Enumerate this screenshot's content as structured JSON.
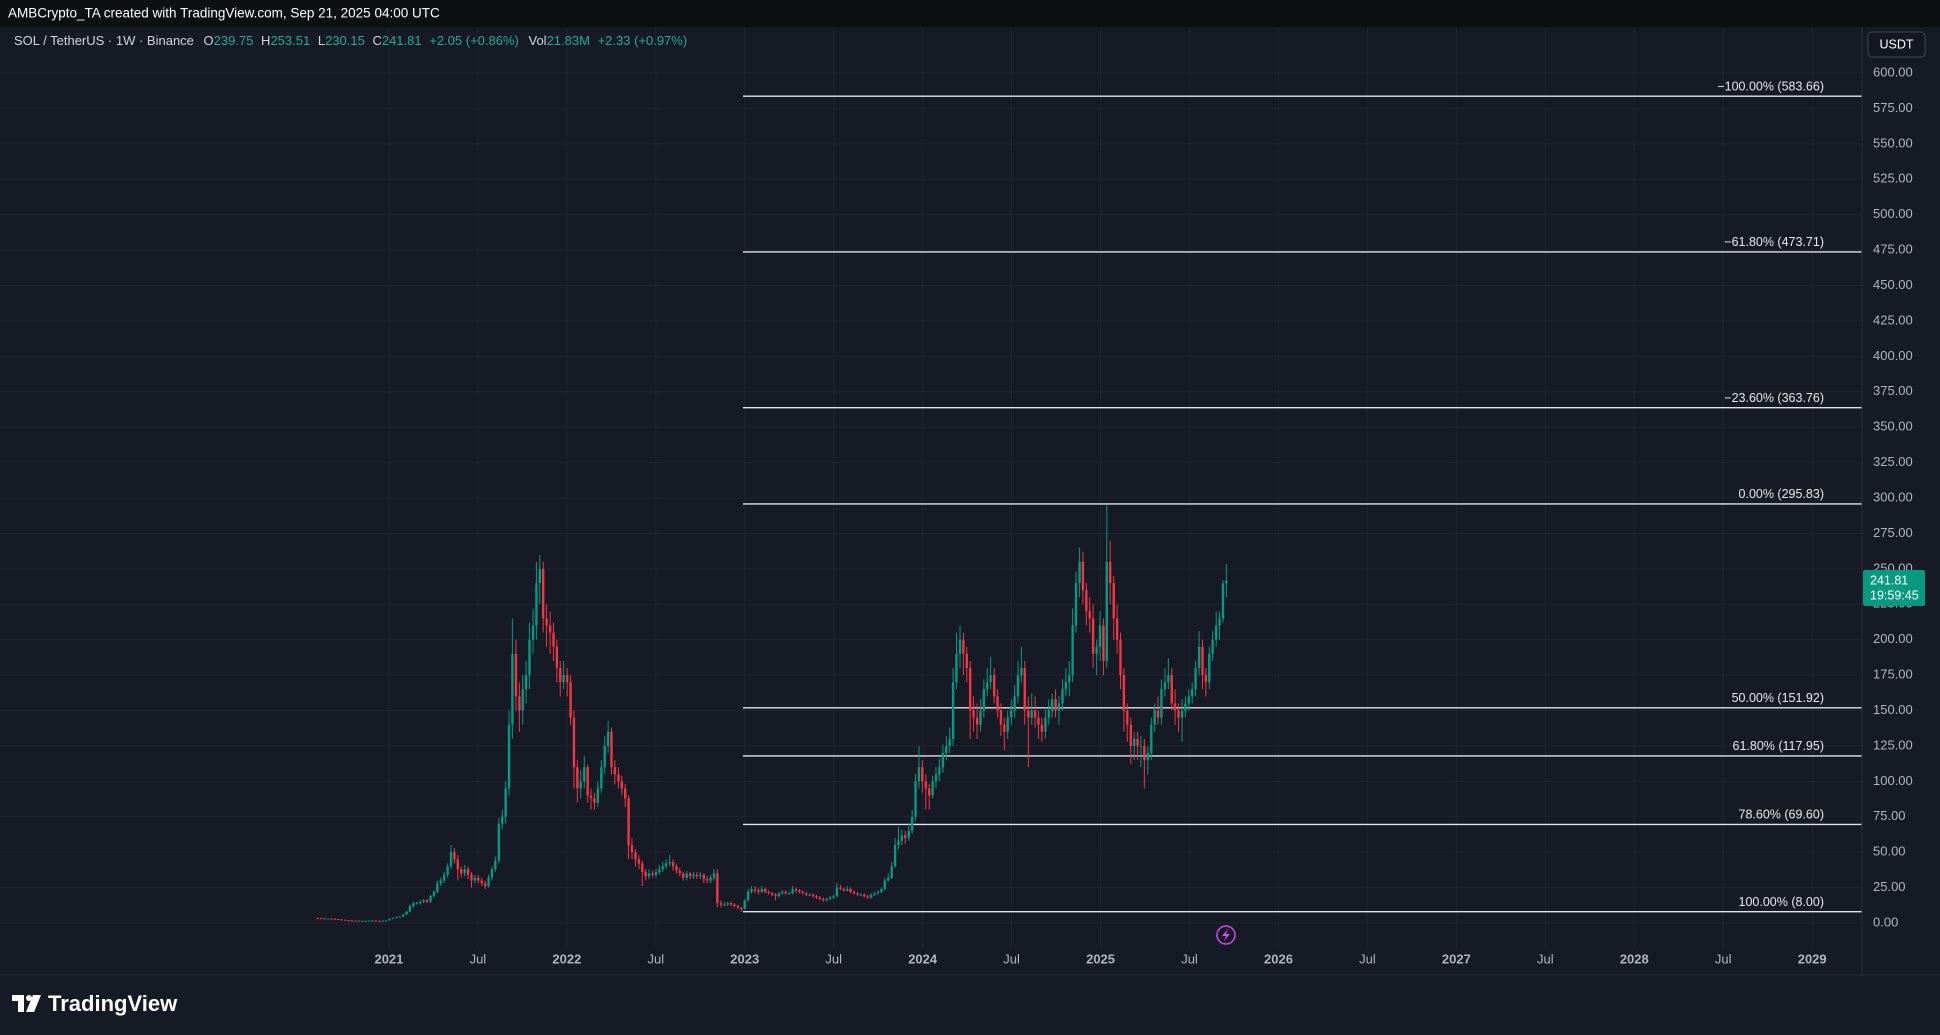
{
  "top_bar": "AMBCrypto_TA created with TradingView.com, Sep 21, 2025 04:00 UTC",
  "currency": "USDT",
  "countdown": "19:59:45",
  "brand": "TradingView",
  "chart_data": {
    "type": "candlestick",
    "title": "SOL / TetherUS · 1W · Binance",
    "header": {
      "o": "O",
      "h": "H",
      "l": "L",
      "c": "C",
      "change": "+2.05 (+0.86%)",
      "vol": "Vol",
      "volume": "21.83M",
      "volume_change": "+2.33 (+0.97%)"
    },
    "colors": {
      "up": "#089981",
      "down": "#f23645"
    },
    "grid": true,
    "xlim": [
      2018.87,
      2029.28
    ],
    "ylim": [
      -36.7,
      632.5
    ],
    "xticks": [
      2021,
      {
        "value": 2021.5,
        "label": "Jul"
      },
      2022,
      {
        "value": 2022.5,
        "label": "Jul"
      },
      2023,
      {
        "value": 2023.5,
        "label": "Jul"
      },
      2024,
      {
        "value": 2024.5,
        "label": "Jul"
      },
      2025,
      {
        "value": 2025.5,
        "label": "Jul"
      },
      2026,
      {
        "value": 2026.5,
        "label": "Jul"
      },
      2027,
      {
        "value": 2027.5,
        "label": "Jul"
      },
      2028,
      {
        "value": 2028.5,
        "label": "Jul"
      },
      2029
    ],
    "yticks": [
      {
        "value": 0,
        "label": "0.00"
      },
      {
        "value": 25,
        "label": "25.00"
      },
      {
        "value": 50,
        "label": "50.00"
      },
      {
        "value": 75,
        "label": "75.00"
      },
      {
        "value": 100,
        "label": "100.00"
      },
      {
        "value": 125,
        "label": "125.00"
      },
      {
        "value": 150,
        "label": "150.00"
      },
      {
        "value": 175,
        "label": "175.00"
      },
      {
        "value": 200,
        "label": "200.00"
      },
      {
        "value": 225,
        "label": "225.00"
      },
      {
        "value": 250,
        "label": "250.00"
      },
      {
        "value": 275,
        "label": "275.00"
      },
      {
        "value": 300,
        "label": "300.00"
      },
      {
        "value": 325,
        "label": "325.00"
      },
      {
        "value": 350,
        "label": "350.00"
      },
      {
        "value": 375,
        "label": "375.00"
      },
      {
        "value": 400,
        "label": "400.00"
      },
      {
        "value": 425,
        "label": "425.00"
      },
      {
        "value": 450,
        "label": "450.00"
      },
      {
        "value": 475,
        "label": "475.00"
      },
      {
        "value": 500,
        "label": "500.00"
      },
      {
        "value": 525,
        "label": "525.00"
      },
      {
        "value": 550,
        "label": "550.00"
      },
      {
        "value": 575,
        "label": "575.00"
      },
      {
        "value": 600,
        "label": "600.00"
      }
    ],
    "fib": {
      "anchor_x": 2022.99,
      "levels": [
        {
          "value": 583.66,
          "label": "−100.00% (583.66)"
        },
        {
          "value": 473.71,
          "label": "−61.80% (473.71)"
        },
        {
          "value": 363.76,
          "label": "−23.60% (363.76)"
        },
        {
          "value": 295.83,
          "label": "0.00% (295.83)"
        },
        {
          "value": 151.92,
          "label": "50.00% (151.92)"
        },
        {
          "value": 117.95,
          "label": "61.80% (117.95)"
        },
        {
          "value": 69.6,
          "label": "78.60% (69.60)"
        },
        {
          "value": 8,
          "label": "100.00% (8.00)"
        }
      ]
    },
    "x": [
      2020.6,
      2020.619,
      2020.638,
      2020.658,
      2020.677,
      2020.696,
      2020.715,
      2020.734,
      2020.754,
      2020.773,
      2020.792,
      2020.811,
      2020.83,
      2020.85,
      2020.869,
      2020.888,
      2020.907,
      2020.926,
      2020.946,
      2020.965,
      2020.984,
      2021.003,
      2021.022,
      2021.042,
      2021.061,
      2021.08,
      2021.099,
      2021.118,
      2021.138,
      2021.157,
      2021.176,
      2021.195,
      2021.214,
      2021.234,
      2021.253,
      2021.272,
      2021.291,
      2021.31,
      2021.33,
      2021.349,
      2021.368,
      2021.387,
      2021.406,
      2021.426,
      2021.445,
      2021.464,
      2021.483,
      2021.502,
      2021.522,
      2021.541,
      2021.56,
      2021.579,
      2021.598,
      2021.618,
      2021.637,
      2021.656,
      2021.675,
      2021.694,
      2021.714,
      2021.733,
      2021.752,
      2021.771,
      2021.79,
      2021.81,
      2021.829,
      2021.848,
      2021.867,
      2021.886,
      2021.906,
      2021.925,
      2021.944,
      2021.963,
      2021.982,
      2022.002,
      2022.021,
      2022.04,
      2022.059,
      2022.078,
      2022.098,
      2022.117,
      2022.136,
      2022.155,
      2022.174,
      2022.194,
      2022.213,
      2022.232,
      2022.251,
      2022.27,
      2022.29,
      2022.309,
      2022.328,
      2022.347,
      2022.366,
      2022.386,
      2022.405,
      2022.424,
      2022.443,
      2022.462,
      2022.482,
      2022.501,
      2022.52,
      2022.539,
      2022.558,
      2022.578,
      2022.597,
      2022.616,
      2022.635,
      2022.654,
      2022.674,
      2022.693,
      2022.712,
      2022.731,
      2022.75,
      2022.77,
      2022.789,
      2022.808,
      2022.827,
      2022.846,
      2022.866,
      2022.885,
      2022.904,
      2022.923,
      2022.942,
      2022.962,
      2022.981,
      2023.0,
      2023.019,
      2023.038,
      2023.058,
      2023.077,
      2023.096,
      2023.115,
      2023.134,
      2023.154,
      2023.173,
      2023.192,
      2023.211,
      2023.23,
      2023.25,
      2023.269,
      2023.288,
      2023.307,
      2023.326,
      2023.346,
      2023.365,
      2023.384,
      2023.403,
      2023.422,
      2023.442,
      2023.461,
      2023.48,
      2023.499,
      2023.518,
      2023.538,
      2023.557,
      2023.576,
      2023.595,
      2023.614,
      2023.634,
      2023.653,
      2023.672,
      2023.691,
      2023.71,
      2023.73,
      2023.749,
      2023.768,
      2023.787,
      2023.806,
      2023.826,
      2023.845,
      2023.864,
      2023.883,
      2023.902,
      2023.922,
      2023.941,
      2023.96,
      2023.979,
      2023.998,
      2024.018,
      2024.037,
      2024.056,
      2024.075,
      2024.094,
      2024.114,
      2024.133,
      2024.152,
      2024.171,
      2024.19,
      2024.21,
      2024.229,
      2024.248,
      2024.267,
      2024.286,
      2024.306,
      2024.325,
      2024.344,
      2024.363,
      2024.382,
      2024.402,
      2024.421,
      2024.44,
      2024.459,
      2024.478,
      2024.498,
      2024.517,
      2024.536,
      2024.555,
      2024.574,
      2024.594,
      2024.613,
      2024.632,
      2024.651,
      2024.67,
      2024.69,
      2024.709,
      2024.728,
      2024.747,
      2024.766,
      2024.786,
      2024.805,
      2024.824,
      2024.843,
      2024.862,
      2024.882,
      2024.901,
      2024.92,
      2024.939,
      2024.958,
      2024.978,
      2024.997,
      2025.016,
      2025.035,
      2025.054,
      2025.074,
      2025.093,
      2025.112,
      2025.131,
      2025.15,
      2025.17,
      2025.189,
      2025.208,
      2025.227,
      2025.246,
      2025.266,
      2025.285,
      2025.304,
      2025.323,
      2025.342,
      2025.362,
      2025.381,
      2025.4,
      2025.419,
      2025.438,
      2025.458,
      2025.477,
      2025.496,
      2025.515,
      2025.534,
      2025.554,
      2025.573,
      2025.592,
      2025.611,
      2025.63,
      2025.65,
      2025.669,
      2025.688,
      2025.707
    ],
    "open": [
      3.6,
      3.5,
      3.3,
      3,
      3.2,
      3,
      2.8,
      2.5,
      2.3,
      2,
      1.8,
      1.7,
      1.6,
      1.5,
      1.5,
      1.6,
      1.7,
      1.8,
      1.6,
      1.5,
      1.6,
      1.8,
      3,
      3.5,
      4.2,
      4.5,
      6,
      8,
      12,
      14,
      14,
      15,
      16,
      15,
      19,
      22,
      28,
      30,
      34,
      40,
      50,
      45,
      38,
      35,
      38,
      34,
      30,
      32,
      30,
      28,
      26,
      32,
      38,
      44,
      70,
      75,
      95,
      140,
      190,
      160,
      150,
      165,
      175,
      200,
      210,
      240,
      250,
      215,
      210,
      205,
      195,
      180,
      170,
      175,
      170,
      145,
      110,
      95,
      100,
      110,
      90,
      88,
      85,
      95,
      110,
      125,
      135,
      110,
      105,
      100,
      95,
      88,
      55,
      50,
      45,
      42,
      36,
      33,
      35,
      34,
      36,
      38,
      40,
      42,
      43,
      40,
      37,
      35,
      32,
      35,
      33,
      34,
      33,
      34,
      31,
      30,
      32,
      35,
      14,
      13,
      13,
      14,
      13,
      12,
      11,
      10,
      16,
      22,
      24,
      23,
      22,
      24,
      22,
      21,
      20,
      19,
      21,
      22,
      21,
      21,
      24,
      23,
      22,
      21,
      20,
      20,
      19,
      18,
      17,
      16,
      17,
      18,
      19,
      25,
      24,
      23,
      24,
      22,
      21,
      20,
      20,
      19,
      18,
      20,
      21,
      22,
      24,
      30,
      32,
      40,
      55,
      58,
      62,
      60,
      65,
      75,
      100,
      110,
      100,
      95,
      90,
      100,
      105,
      110,
      120,
      125,
      130,
      170,
      190,
      200,
      190,
      180,
      150,
      145,
      140,
      150,
      165,
      170,
      175,
      160,
      150,
      140,
      135,
      145,
      150,
      160,
      175,
      180,
      150,
      145,
      150,
      145,
      140,
      135,
      145,
      150,
      158,
      150,
      155,
      165,
      170,
      175,
      210,
      240,
      255,
      235,
      220,
      215,
      190,
      195,
      210,
      185,
      255,
      240,
      215,
      200,
      175,
      150,
      140,
      125,
      130,
      125,
      125,
      115,
      120,
      140,
      150,
      145,
      165,
      170,
      175,
      155,
      150,
      145,
      150,
      155,
      160,
      165,
      180,
      195,
      175,
      170,
      190,
      200,
      210,
      215,
      239.75
    ],
    "high": [
      3.8,
      3.7,
      3.5,
      3.4,
      3.4,
      3.2,
      3,
      2.7,
      2.4,
      2.1,
      1.9,
      1.8,
      1.7,
      1.6,
      1.7,
      1.8,
      1.9,
      1.9,
      1.7,
      1.7,
      1.9,
      3.2,
      3.7,
      4.5,
      4.8,
      6.4,
      8.5,
      13,
      15,
      15,
      16,
      17,
      17,
      20,
      23,
      30,
      32,
      36,
      42,
      55,
      53,
      48,
      40,
      41,
      40,
      36,
      34,
      34,
      32,
      30,
      34,
      40,
      47,
      74,
      80,
      100,
      150,
      215,
      200,
      170,
      175,
      185,
      212,
      222,
      255,
      260,
      255,
      225,
      220,
      212,
      200,
      185,
      185,
      180,
      175,
      150,
      115,
      108,
      118,
      112,
      95,
      92,
      100,
      115,
      132,
      143,
      138,
      115,
      110,
      104,
      98,
      90,
      60,
      52,
      48,
      44,
      38,
      38,
      37,
      38,
      41,
      43,
      45,
      48,
      45,
      42,
      39,
      36,
      37,
      36,
      36,
      36,
      36,
      35,
      33,
      34,
      38,
      38,
      16,
      15,
      15,
      15,
      14,
      13,
      11,
      17,
      24,
      26,
      26,
      25,
      26,
      25,
      23,
      22,
      21,
      22,
      23,
      23,
      22,
      26,
      25,
      24,
      23,
      22,
      21,
      21,
      20,
      19,
      18,
      18,
      19,
      20,
      28,
      27,
      25,
      26,
      25,
      23,
      22,
      21,
      21,
      20,
      21,
      22,
      23,
      25,
      32,
      35,
      43,
      60,
      68,
      66,
      65,
      70,
      80,
      105,
      125,
      115,
      105,
      98,
      104,
      110,
      116,
      126,
      132,
      138,
      180,
      205,
      210,
      205,
      195,
      185,
      160,
      155,
      158,
      172,
      180,
      188,
      180,
      165,
      155,
      145,
      150,
      158,
      168,
      185,
      195,
      185,
      160,
      162,
      160,
      150,
      145,
      152,
      158,
      162,
      165,
      160,
      172,
      180,
      185,
      222,
      248,
      265,
      262,
      240,
      230,
      225,
      200,
      220,
      215,
      295,
      270,
      245,
      225,
      205,
      180,
      155,
      145,
      135,
      135,
      132,
      130,
      125,
      145,
      155,
      160,
      172,
      180,
      187,
      180,
      165,
      155,
      158,
      160,
      165,
      170,
      185,
      206,
      200,
      180,
      195,
      206,
      220,
      220,
      242,
      253.51
    ],
    "low": [
      3.3,
      3.1,
      2.8,
      2.8,
      2.8,
      2.6,
      2.3,
      2.1,
      1.9,
      1.7,
      1.6,
      1.5,
      1.4,
      1.4,
      1.4,
      1.5,
      1.6,
      1.5,
      1.4,
      1.4,
      1.5,
      1.7,
      2.8,
      3.3,
      3.9,
      4.2,
      5.6,
      7.5,
      11,
      13,
      13,
      14,
      14,
      14,
      18,
      21,
      26,
      28,
      32,
      38,
      42,
      30,
      32,
      33,
      31,
      25,
      28,
      28,
      26,
      24,
      25,
      30,
      36,
      42,
      66,
      70,
      90,
      130,
      150,
      135,
      140,
      155,
      165,
      190,
      200,
      225,
      205,
      195,
      190,
      185,
      170,
      160,
      165,
      160,
      140,
      95,
      85,
      88,
      95,
      85,
      80,
      80,
      82,
      92,
      105,
      120,
      105,
      98,
      95,
      90,
      82,
      45,
      45,
      40,
      38,
      26,
      30,
      31,
      32,
      32,
      34,
      36,
      38,
      40,
      37,
      35,
      33,
      30,
      30,
      31,
      31,
      31,
      31,
      28,
      28,
      28,
      30,
      11,
      11,
      12,
      12,
      12,
      11,
      9.5,
      8,
      9.5,
      15,
      21,
      21,
      20,
      21,
      21,
      20,
      19,
      16,
      18,
      20,
      20,
      20,
      20,
      21,
      21,
      20,
      19,
      19,
      18,
      17,
      16,
      15,
      15,
      16,
      17,
      18,
      23,
      22,
      22,
      21,
      20,
      19,
      19,
      18,
      17,
      17,
      19,
      20,
      21,
      23,
      29,
      31,
      39,
      52,
      55,
      56,
      58,
      63,
      72,
      95,
      92,
      80,
      80,
      88,
      95,
      100,
      106,
      115,
      120,
      125,
      165,
      180,
      175,
      170,
      130,
      135,
      130,
      135,
      145,
      160,
      165,
      155,
      145,
      132,
      122,
      130,
      140,
      145,
      155,
      170,
      140,
      110,
      140,
      138,
      130,
      128,
      130,
      140,
      145,
      145,
      140,
      150,
      160,
      160,
      170,
      205,
      230,
      225,
      210,
      205,
      180,
      175,
      185,
      175,
      180,
      225,
      200,
      190,
      165,
      135,
      128,
      112,
      115,
      115,
      110,
      95,
      105,
      115,
      135,
      140,
      140,
      160,
      165,
      150,
      140,
      135,
      128,
      145,
      150,
      155,
      160,
      175,
      165,
      160,
      165,
      185,
      195,
      200,
      212,
      230.15
    ],
    "close": [
      3.5,
      3.3,
      3,
      3.2,
      3,
      2.8,
      2.5,
      2.3,
      2,
      1.8,
      1.7,
      1.6,
      1.5,
      1.5,
      1.6,
      1.7,
      1.8,
      1.6,
      1.5,
      1.6,
      1.8,
      3,
      3.5,
      4.2,
      4.5,
      6,
      8,
      12,
      14,
      14,
      15,
      16,
      15,
      19,
      22,
      28,
      30,
      34,
      40,
      50,
      45,
      38,
      35,
      38,
      34,
      30,
      32,
      30,
      28,
      26,
      32,
      38,
      44,
      70,
      75,
      95,
      140,
      190,
      160,
      150,
      165,
      175,
      200,
      210,
      240,
      250,
      215,
      210,
      205,
      195,
      180,
      170,
      175,
      170,
      145,
      110,
      95,
      100,
      110,
      90,
      88,
      85,
      95,
      110,
      125,
      135,
      110,
      105,
      100,
      95,
      88,
      55,
      50,
      45,
      42,
      36,
      33,
      35,
      34,
      36,
      38,
      40,
      42,
      43,
      40,
      37,
      35,
      32,
      35,
      33,
      34,
      33,
      34,
      31,
      30,
      32,
      35,
      14,
      13,
      13,
      14,
      13,
      12,
      11,
      10,
      16,
      22,
      24,
      23,
      22,
      24,
      22,
      21,
      20,
      19,
      21,
      22,
      21,
      21,
      24,
      23,
      22,
      21,
      20,
      20,
      19,
      18,
      17,
      16,
      17,
      18,
      19,
      25,
      24,
      23,
      24,
      22,
      21,
      20,
      20,
      19,
      18,
      20,
      21,
      22,
      24,
      30,
      32,
      40,
      55,
      58,
      62,
      60,
      65,
      75,
      100,
      110,
      100,
      95,
      90,
      100,
      105,
      110,
      120,
      125,
      130,
      170,
      190,
      200,
      190,
      180,
      150,
      145,
      140,
      150,
      165,
      170,
      175,
      160,
      150,
      140,
      135,
      145,
      150,
      160,
      175,
      180,
      150,
      145,
      150,
      145,
      140,
      135,
      145,
      150,
      158,
      150,
      155,
      165,
      170,
      175,
      210,
      240,
      255,
      235,
      220,
      215,
      190,
      195,
      210,
      185,
      255,
      240,
      215,
      200,
      175,
      150,
      140,
      125,
      130,
      125,
      125,
      115,
      120,
      140,
      150,
      145,
      165,
      170,
      175,
      155,
      150,
      145,
      150,
      155,
      160,
      165,
      180,
      195,
      175,
      170,
      190,
      200,
      210,
      215,
      239.75,
      241.81
    ]
  }
}
